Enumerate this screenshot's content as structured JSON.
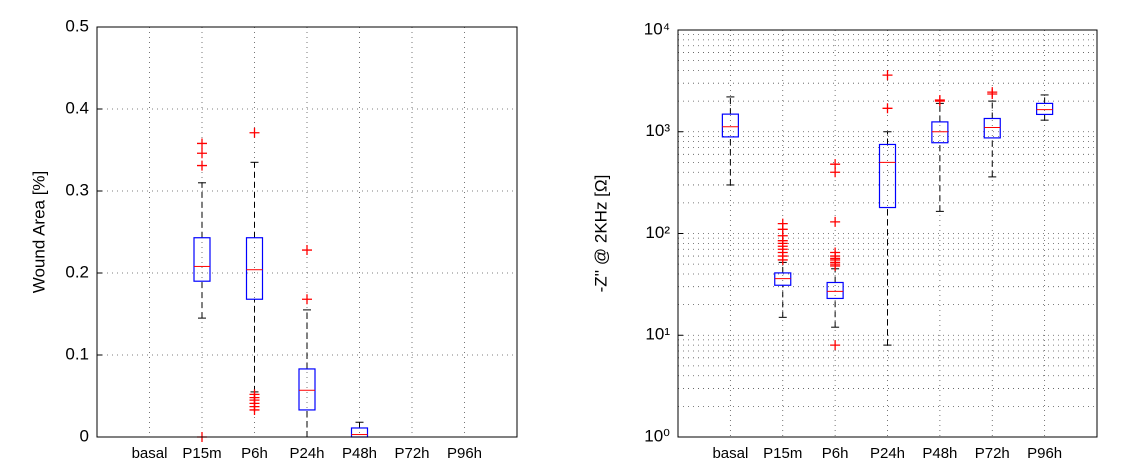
{
  "chart_data": [
    {
      "type": "box",
      "ylabel": "Wound Area [%]",
      "categories": [
        "basal",
        "P15m",
        "P6h",
        "P24h",
        "P48h",
        "P72h",
        "P96h"
      ],
      "ylim": [
        0,
        0.5
      ],
      "yticks": [
        0,
        0.1,
        0.2,
        0.3,
        0.4,
        0.5
      ],
      "grid": true,
      "log": false,
      "box_color": "#0000ff",
      "median_color": "#ff0000",
      "outlier_color": "#ff0000",
      "boxes": [
        null,
        {
          "low": 0.145,
          "q1": 0.19,
          "median": 0.208,
          "q3": 0.243,
          "high": 0.31,
          "outliers": [
            0.358,
            0.346,
            0.331,
            0
          ]
        },
        {
          "low": 0.055,
          "q1": 0.168,
          "median": 0.204,
          "q3": 0.243,
          "high": 0.335,
          "outliers": [
            0.371,
            0.052,
            0.048,
            0.045,
            0.041,
            0.037,
            0.033
          ]
        },
        {
          "low": 0,
          "q1": 0.033,
          "median": 0.057,
          "q3": 0.083,
          "high": 0.155,
          "outliers": [
            0.228,
            0.168
          ]
        },
        {
          "low": 0,
          "q1": 0,
          "median": 0.003,
          "q3": 0.011,
          "high": 0.018,
          "outliers": []
        },
        null,
        null
      ]
    },
    {
      "type": "box",
      "ylabel": "-Z'' @ 2KHz [Ω]",
      "categories": [
        "basal",
        "P15m",
        "P6h",
        "P24h",
        "P48h",
        "P72h",
        "P96h"
      ],
      "ylim": [
        1,
        10000
      ],
      "yticks": [
        {
          "value": 1,
          "label": "10⁰"
        },
        {
          "value": 10,
          "label": "10¹"
        },
        {
          "value": 100,
          "label": "10²"
        },
        {
          "value": 1000,
          "label": "10³"
        },
        {
          "value": 10000,
          "label": "10⁴"
        }
      ],
      "grid": true,
      "log": true,
      "box_color": "#0000ff",
      "median_color": "#ff0000",
      "outlier_color": "#ff0000",
      "boxes": [
        {
          "low": 300,
          "q1": 890,
          "median": 1120,
          "q3": 1490,
          "high": 2200,
          "outliers": []
        },
        {
          "low": 15,
          "q1": 31,
          "median": 36,
          "q3": 41,
          "high": 52,
          "outliers": [
            125,
            110,
            95,
            85,
            80,
            75,
            70,
            65,
            60,
            55
          ]
        },
        {
          "low": 12,
          "q1": 23,
          "median": 27,
          "q3": 33,
          "high": 45,
          "outliers": [
            8,
            48,
            50,
            52,
            55,
            57,
            60,
            65,
            130,
            400,
            480
          ]
        },
        {
          "low": 8,
          "q1": 180,
          "median": 500,
          "q3": 750,
          "high": 1000,
          "outliers": [
            1700,
            3600
          ]
        },
        {
          "low": 165,
          "q1": 780,
          "median": 1000,
          "q3": 1250,
          "high": 1900,
          "outliers": [
            2050,
            2000
          ]
        },
        {
          "low": 360,
          "q1": 870,
          "median": 1100,
          "q3": 1350,
          "high": 2000,
          "outliers": [
            2450,
            2350
          ]
        },
        {
          "low": 1300,
          "q1": 1480,
          "median": 1650,
          "q3": 1900,
          "high": 2300,
          "outliers": []
        }
      ]
    }
  ]
}
